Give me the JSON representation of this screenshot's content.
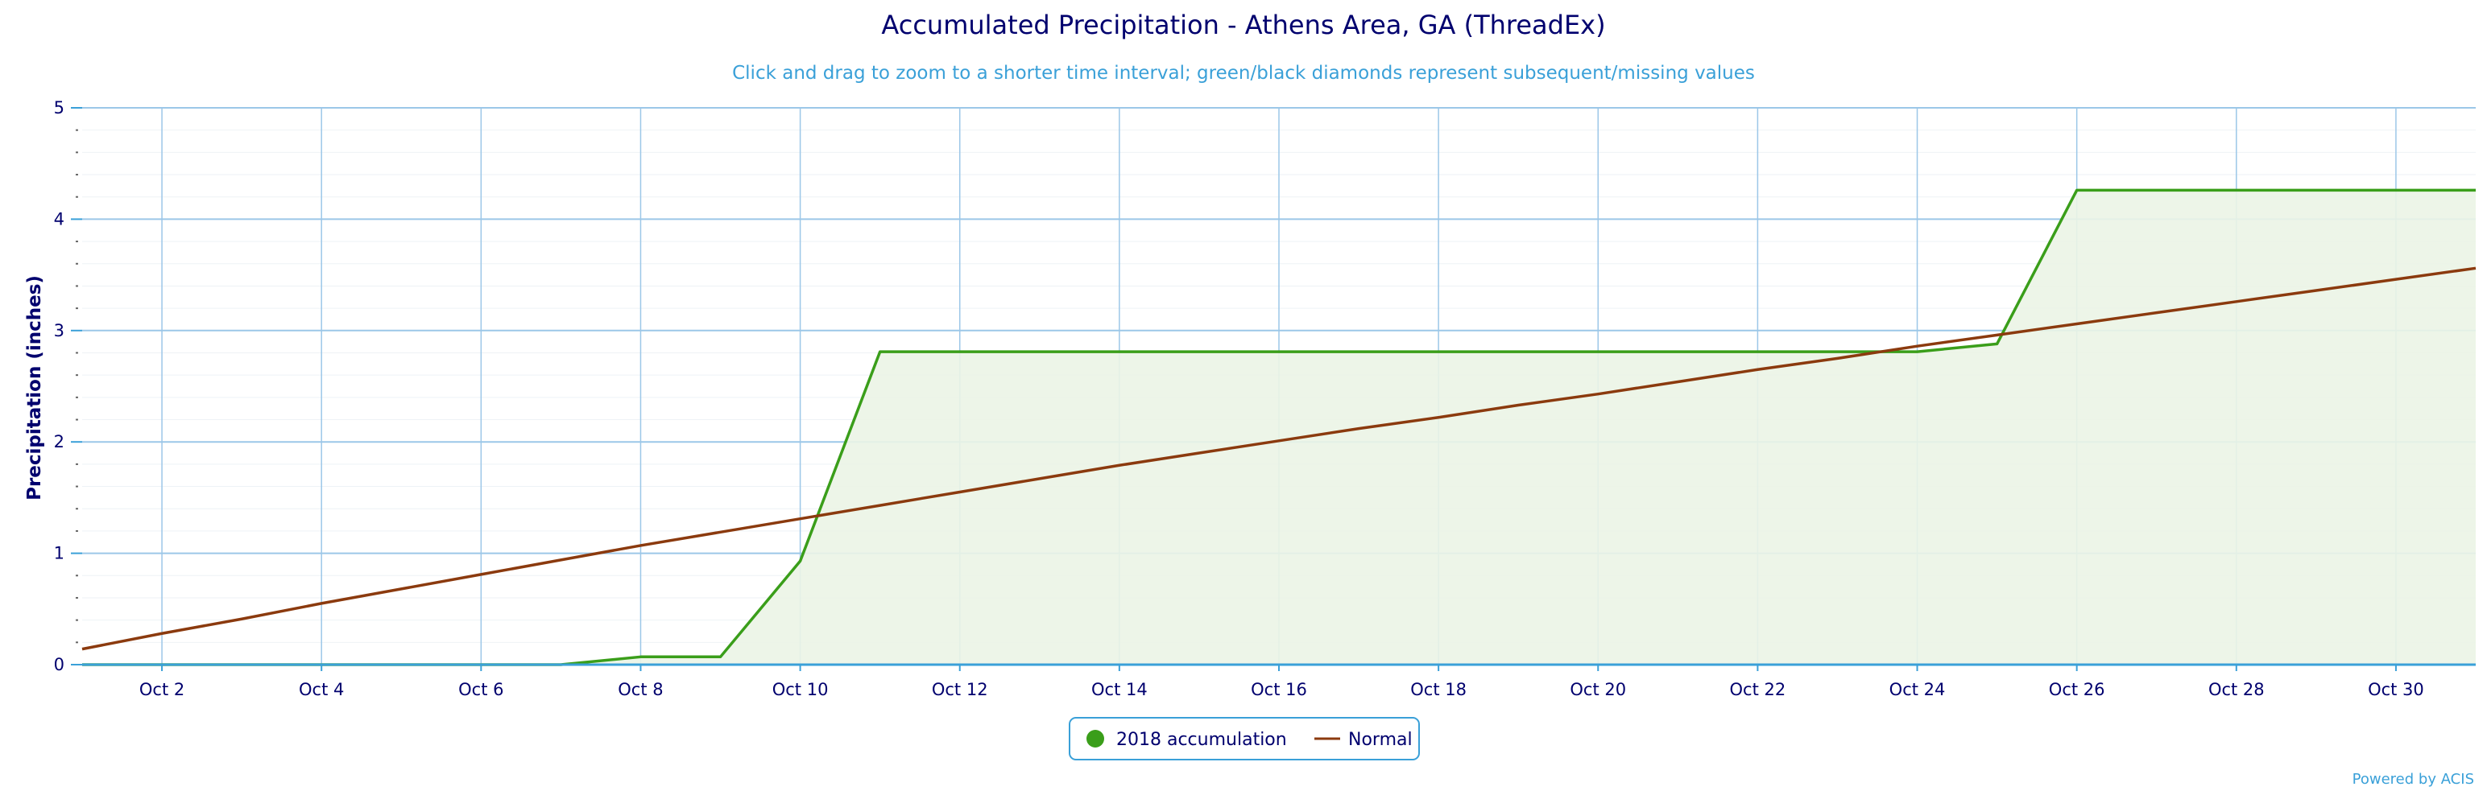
{
  "chart_data": {
    "type": "area",
    "title": "Accumulated Precipitation - Athens Area, GA (ThreadEx)",
    "subtitle": "Click and drag to zoom to a shorter time interval; green/black diamonds represent subsequent/missing values",
    "ylabel": "Precipitation (inches)",
    "xlabel": "",
    "ylim": [
      0,
      5
    ],
    "yticks": [
      "0",
      "1",
      "2",
      "3",
      "4",
      "5"
    ],
    "xlim": [
      1,
      31
    ],
    "xticks": [
      {
        "day": 2,
        "label": "Oct 2"
      },
      {
        "day": 4,
        "label": "Oct 4"
      },
      {
        "day": 6,
        "label": "Oct 6"
      },
      {
        "day": 8,
        "label": "Oct 8"
      },
      {
        "day": 10,
        "label": "Oct 10"
      },
      {
        "day": 12,
        "label": "Oct 12"
      },
      {
        "day": 14,
        "label": "Oct 14"
      },
      {
        "day": 16,
        "label": "Oct 16"
      },
      {
        "day": 18,
        "label": "Oct 18"
      },
      {
        "day": 20,
        "label": "Oct 20"
      },
      {
        "day": 22,
        "label": "Oct 22"
      },
      {
        "day": 24,
        "label": "Oct 24"
      },
      {
        "day": 26,
        "label": "Oct 26"
      },
      {
        "day": 28,
        "label": "Oct 28"
      },
      {
        "day": 30,
        "label": "Oct 30"
      }
    ],
    "grid": true,
    "legend_position": "bottom-center",
    "series": [
      {
        "name": "2018 accumulation",
        "color": "#3a9e1a",
        "fill": "#ebf4e6",
        "x": [
          1,
          2,
          3,
          4,
          5,
          6,
          7,
          8,
          9,
          10,
          11,
          12,
          13,
          14,
          15,
          16,
          17,
          18,
          19,
          20,
          21,
          22,
          23,
          24,
          25,
          26,
          27,
          28,
          29,
          30,
          31
        ],
        "y": [
          0,
          0,
          0,
          0,
          0,
          0,
          0,
          0.07,
          0.07,
          0.93,
          2.81,
          2.81,
          2.81,
          2.81,
          2.81,
          2.81,
          2.81,
          2.81,
          2.81,
          2.81,
          2.81,
          2.81,
          2.81,
          2.81,
          2.88,
          4.26,
          4.26,
          4.26,
          4.26,
          4.26,
          4.26
        ]
      },
      {
        "name": "Normal",
        "color": "#8b3a0e",
        "x": [
          1,
          2,
          3,
          4,
          5,
          6,
          7,
          8,
          9,
          10,
          11,
          12,
          13,
          14,
          15,
          16,
          17,
          18,
          19,
          20,
          21,
          22,
          23,
          24,
          25,
          26,
          27,
          28,
          29,
          30,
          31
        ],
        "y": [
          0.14,
          0.28,
          0.41,
          0.55,
          0.68,
          0.81,
          0.94,
          1.07,
          1.19,
          1.31,
          1.43,
          1.55,
          1.67,
          1.79,
          1.9,
          2.01,
          2.12,
          2.22,
          2.33,
          2.43,
          2.54,
          2.65,
          2.75,
          2.86,
          2.96,
          3.06,
          3.16,
          3.26,
          3.36,
          3.46,
          3.56
        ]
      }
    ],
    "credit": "Powered by ACIS"
  }
}
